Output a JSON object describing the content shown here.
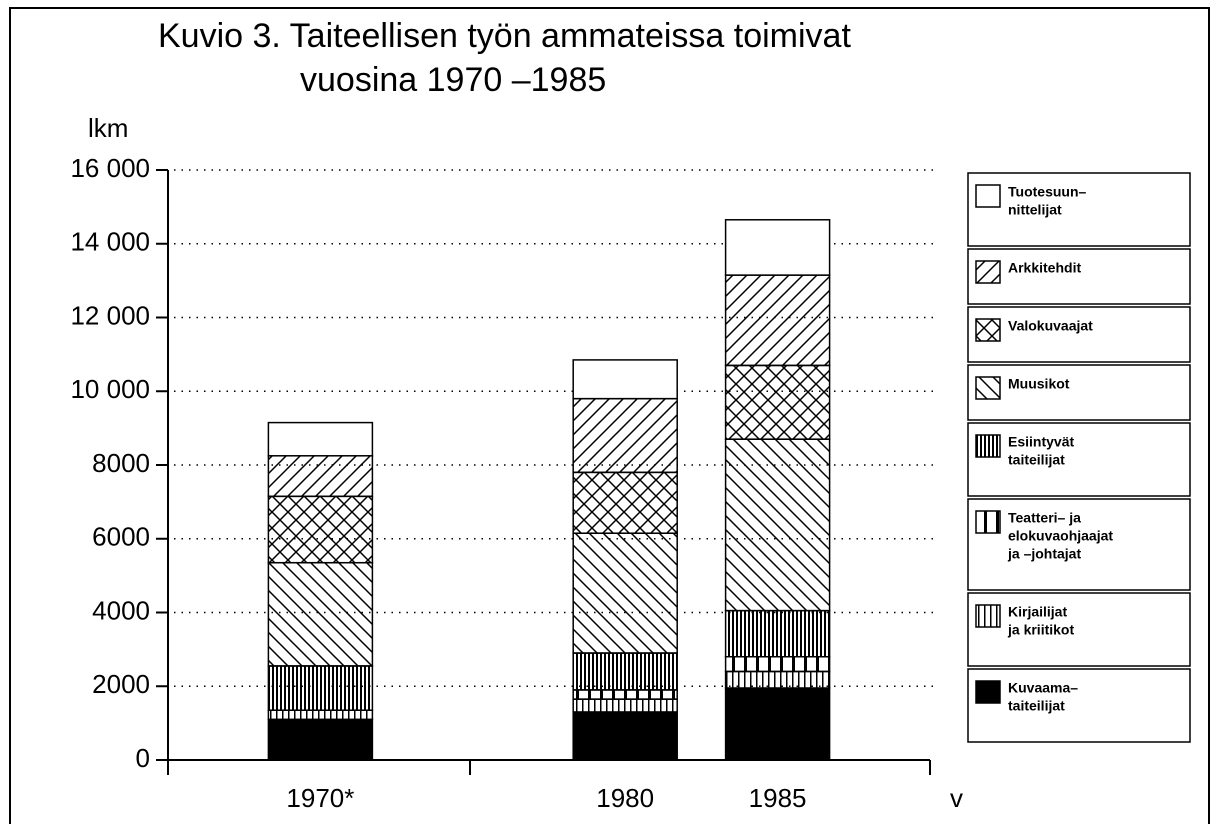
{
  "chart_data": {
    "type": "stacked-bar",
    "title": [
      "Kuvio 3. Taiteellisen työn ammateissa toimivat",
      "vuosina 1970 –1985"
    ],
    "y_label": "lkm",
    "x_label": "v",
    "x": [
      {
        "value": 1970,
        "label": "1970*"
      },
      1980,
      1985
    ],
    "xlim": [
      1965,
      1990
    ],
    "ylim": [
      0,
      16000
    ],
    "yticks": [
      0,
      2000,
      4000,
      6000,
      8000,
      {
        "value": 10000,
        "label": "10 000"
      },
      {
        "value": 12000,
        "label": "12 000"
      },
      {
        "value": 14000,
        "label": "14 000"
      },
      {
        "value": 16000,
        "label": "16 000"
      }
    ],
    "grid": true,
    "legend": "right",
    "series": [
      {
        "name": [
          "Kuvaama–",
          "taiteilijat"
        ],
        "color": "#000000",
        "pattern": "solid",
        "values": [
          1100,
          1300,
          1950
        ]
      },
      {
        "name": [
          "Kirjailijat",
          "ja kriitikot"
        ],
        "color": "#000000",
        "pattern": "vert",
        "values": [
          250,
          350,
          450
        ]
      },
      {
        "name": [
          "Teatteri– ja",
          "elokuvaohjaajat",
          "ja –johtajat"
        ],
        "color": "#000000",
        "pattern": "vert-wide",
        "values": [
          0,
          250,
          400
        ]
      },
      {
        "name": [
          "Esiintyvät",
          "taiteilijat"
        ],
        "color": "#000000",
        "pattern": "vert-dense",
        "values": [
          1200,
          1000,
          1250
        ]
      },
      {
        "name": [
          "Muusikot"
        ],
        "color": "#000000",
        "pattern": "diag-down",
        "values": [
          2800,
          3250,
          4650
        ]
      },
      {
        "name": [
          "Valokuvaajat"
        ],
        "color": "#000000",
        "pattern": "crosshatch",
        "values": [
          1800,
          1650,
          2000
        ]
      },
      {
        "name": [
          "Arkkitehdit"
        ],
        "color": "#000000",
        "pattern": "diag-up",
        "values": [
          1100,
          2000,
          2450
        ]
      },
      {
        "name": [
          "Tuotesuun–",
          "nittelijat"
        ],
        "color": "#000000",
        "pattern": "blank",
        "values": [
          900,
          1050,
          1500
        ]
      }
    ]
  }
}
